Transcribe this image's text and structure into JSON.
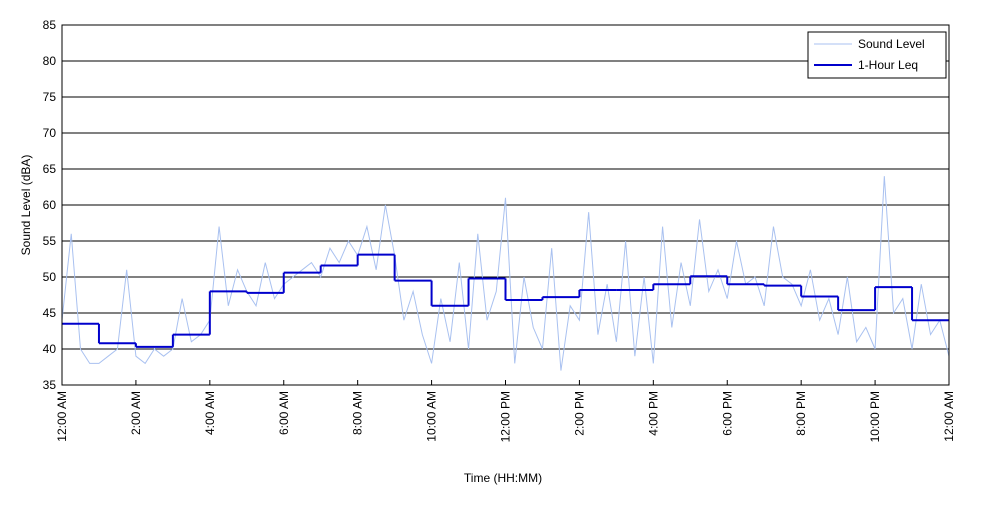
{
  "chart_data": {
    "type": "line",
    "xlabel": "Time (HH:MM)",
    "ylabel": "Sound Level (dBA)",
    "xlim": [
      0,
      24
    ],
    "ylim": [
      35,
      85
    ],
    "yticks": [
      35,
      40,
      45,
      50,
      55,
      60,
      65,
      70,
      75,
      80,
      85
    ],
    "xticks": [
      {
        "value": 0,
        "label": "12:00 AM"
      },
      {
        "value": 2,
        "label": "2:00 AM"
      },
      {
        "value": 4,
        "label": "4:00 AM"
      },
      {
        "value": 6,
        "label": "6:00 AM"
      },
      {
        "value": 8,
        "label": "8:00 AM"
      },
      {
        "value": 10,
        "label": "10:00 AM"
      },
      {
        "value": 12,
        "label": "12:00 PM"
      },
      {
        "value": 14,
        "label": "2:00 PM"
      },
      {
        "value": 16,
        "label": "4:00 PM"
      },
      {
        "value": 18,
        "label": "6:00 PM"
      },
      {
        "value": 20,
        "label": "8:00 PM"
      },
      {
        "value": 22,
        "label": "10:00 PM"
      },
      {
        "value": 24,
        "label": "12:00 AM"
      }
    ],
    "grid": true,
    "legend": "upper right",
    "series": [
      {
        "name": "Sound Level",
        "color": "#a9c1f0",
        "style": "line",
        "x": [
          0,
          0.25,
          0.5,
          0.75,
          1,
          1.25,
          1.5,
          1.75,
          2,
          2.25,
          2.5,
          2.75,
          3,
          3.25,
          3.5,
          3.75,
          4,
          4.25,
          4.5,
          4.75,
          5,
          5.25,
          5.5,
          5.75,
          6,
          6.25,
          6.5,
          6.75,
          7,
          7.25,
          7.5,
          7.75,
          8,
          8.25,
          8.5,
          8.75,
          9,
          9.25,
          9.5,
          9.75,
          10,
          10.25,
          10.5,
          10.75,
          11,
          11.25,
          11.5,
          11.75,
          12,
          12.25,
          12.5,
          12.75,
          13,
          13.25,
          13.5,
          13.75,
          14,
          14.25,
          14.5,
          14.75,
          15,
          15.25,
          15.5,
          15.75,
          16,
          16.25,
          16.5,
          16.75,
          17,
          17.25,
          17.5,
          17.75,
          18,
          18.25,
          18.5,
          18.75,
          19,
          19.25,
          19.5,
          19.75,
          20,
          20.25,
          20.5,
          20.75,
          21,
          21.25,
          21.5,
          21.75,
          22,
          22.25,
          22.5,
          22.75,
          23,
          23.25,
          23.5,
          23.75,
          24
        ],
        "values": [
          44,
          56,
          40,
          38,
          38,
          39,
          40,
          51,
          39,
          38,
          40,
          39,
          40,
          47,
          41,
          42,
          44,
          57,
          46,
          51,
          48,
          46,
          52,
          47,
          49,
          50,
          51,
          52,
          50,
          54,
          52,
          55,
          53,
          57,
          51,
          60,
          53,
          44,
          48,
          42,
          38,
          47,
          41,
          52,
          40,
          56,
          44,
          48,
          61,
          38,
          50,
          43,
          40,
          54,
          37,
          46,
          44,
          59,
          42,
          49,
          41,
          55,
          39,
          50,
          38,
          57,
          43,
          52,
          46,
          58,
          48,
          51,
          47,
          55,
          49,
          50,
          46,
          57,
          50,
          49,
          46,
          51,
          44,
          47,
          42,
          50,
          41,
          43,
          40,
          64,
          45,
          47,
          40,
          49,
          42,
          44,
          39
        ]
      },
      {
        "name": "1-Hour Leq",
        "color": "#0000cc",
        "style": "step",
        "x": [
          0,
          1,
          2,
          3,
          4,
          5,
          6,
          7,
          8,
          9,
          10,
          11,
          12,
          13,
          14,
          15,
          16,
          17,
          18,
          19,
          20,
          21,
          22,
          23
        ],
        "values": [
          43.5,
          40.8,
          40.3,
          42.0,
          48.0,
          47.8,
          50.6,
          51.6,
          53.1,
          49.5,
          46.0,
          49.8,
          46.8,
          47.2,
          48.2,
          48.2,
          49.0,
          50.1,
          49.0,
          48.8,
          47.3,
          45.4,
          48.6,
          44.0
        ]
      }
    ]
  }
}
